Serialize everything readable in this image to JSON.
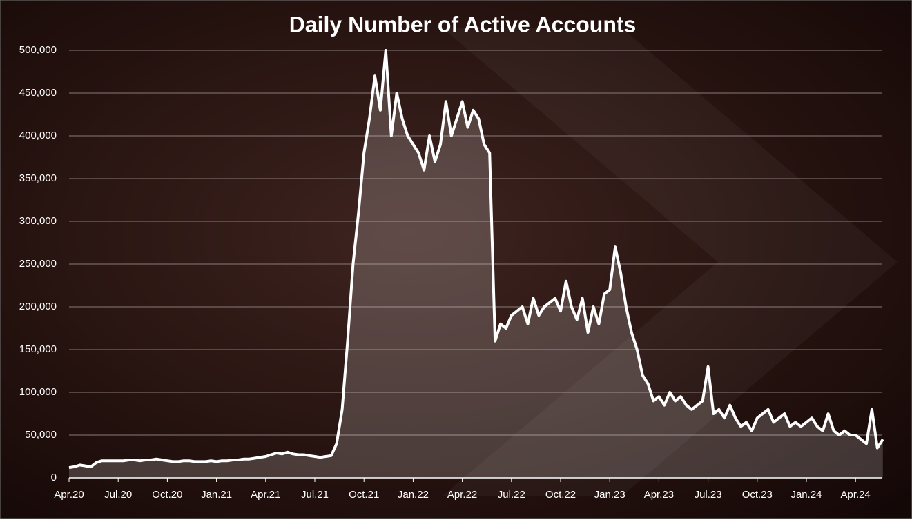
{
  "chart_data": {
    "type": "line",
    "title": "Daily Number of Active Accounts",
    "categories": [
      "Apr.20",
      null,
      null,
      null,
      null,
      null,
      null,
      null,
      null,
      "Jul.20",
      null,
      null,
      null,
      null,
      null,
      null,
      null,
      null,
      "Oct.20",
      null,
      null,
      null,
      null,
      null,
      null,
      null,
      null,
      "Jan.21",
      null,
      null,
      null,
      null,
      null,
      null,
      null,
      null,
      "Apr.21",
      null,
      null,
      null,
      null,
      null,
      null,
      null,
      null,
      "Jul.21",
      null,
      null,
      null,
      null,
      null,
      null,
      null,
      null,
      "Oct.21",
      null,
      null,
      null,
      null,
      null,
      null,
      null,
      null,
      "Jan.22",
      null,
      null,
      null,
      null,
      null,
      null,
      null,
      null,
      "Apr.22",
      null,
      null,
      null,
      null,
      null,
      null,
      null,
      null,
      "Jul.22",
      null,
      null,
      null,
      null,
      null,
      null,
      null,
      null,
      "Oct.22",
      null,
      null,
      null,
      null,
      null,
      null,
      null,
      null,
      "Jan.23",
      null,
      null,
      null,
      null,
      null,
      null,
      null,
      null,
      "Apr.23",
      null,
      null,
      null,
      null,
      null,
      null,
      null,
      null,
      "Jul.23",
      null,
      null,
      null,
      null,
      null,
      null,
      null,
      null,
      "Oct.23",
      null,
      null,
      null,
      null,
      null,
      null,
      null,
      null,
      "Jan.24",
      null,
      null,
      null,
      null,
      null,
      null,
      null,
      null,
      "Apr.24",
      null,
      null,
      null,
      null,
      null
    ],
    "values": [
      12000,
      13000,
      15000,
      14000,
      13000,
      18000,
      20000,
      20000,
      20000,
      20000,
      20000,
      21000,
      21000,
      20000,
      21000,
      21000,
      22000,
      21000,
      20000,
      19000,
      19000,
      20000,
      20000,
      19000,
      19000,
      19000,
      20000,
      19000,
      20000,
      20000,
      21000,
      21000,
      22000,
      22000,
      23000,
      24000,
      25000,
      27000,
      29000,
      28000,
      30000,
      28000,
      27000,
      27000,
      26000,
      25000,
      24000,
      25000,
      26000,
      40000,
      80000,
      160000,
      250000,
      310000,
      380000,
      420000,
      470000,
      430000,
      500000,
      400000,
      450000,
      420000,
      400000,
      390000,
      380000,
      360000,
      400000,
      370000,
      390000,
      440000,
      400000,
      420000,
      440000,
      410000,
      430000,
      420000,
      390000,
      380000,
      160000,
      180000,
      175000,
      190000,
      195000,
      200000,
      180000,
      210000,
      190000,
      200000,
      205000,
      210000,
      195000,
      230000,
      200000,
      185000,
      210000,
      170000,
      200000,
      180000,
      215000,
      220000,
      270000,
      240000,
      200000,
      170000,
      150000,
      120000,
      110000,
      90000,
      95000,
      85000,
      100000,
      90000,
      95000,
      85000,
      80000,
      85000,
      90000,
      130000,
      75000,
      80000,
      70000,
      85000,
      70000,
      60000,
      65000,
      55000,
      70000,
      75000,
      80000,
      65000,
      70000,
      75000,
      60000,
      65000,
      60000,
      65000,
      70000,
      60000,
      55000,
      75000,
      55000,
      50000,
      55000,
      50000,
      50000,
      45000,
      40000,
      80000,
      35000,
      45000
    ],
    "color": "#ffffff",
    "ylim": [
      0,
      500000
    ],
    "yticks": [
      0,
      {
        "value": 50000,
        "label": "50,000"
      },
      {
        "value": 100000,
        "label": "100,000"
      },
      {
        "value": 150000,
        "label": "150,000"
      },
      {
        "value": 200000,
        "label": "200,000"
      },
      {
        "value": 250000,
        "label": "250,000"
      },
      {
        "value": 300000,
        "label": "300,000"
      },
      {
        "value": 350000,
        "label": "350,000"
      },
      {
        "value": 400000,
        "label": "400,000"
      },
      {
        "value": 450000,
        "label": "450,000"
      },
      {
        "value": 500000,
        "label": "500,000"
      }
    ],
    "grid": true
  }
}
